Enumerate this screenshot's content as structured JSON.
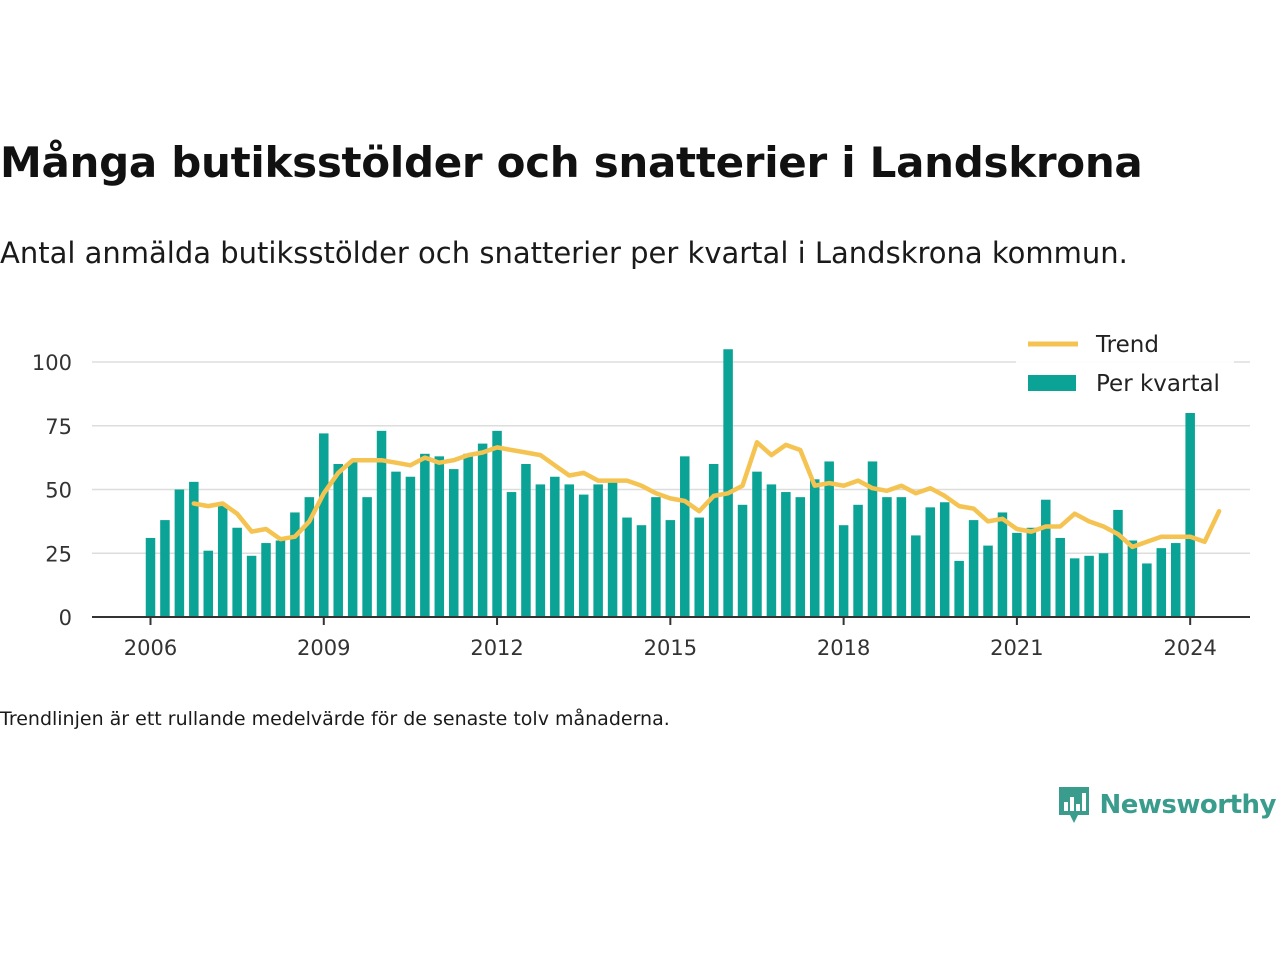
{
  "header": {
    "title": "Många butiksstölder och snatterier i Landskrona",
    "subtitle": "Antal anmälda butiksstölder och snatterier per kvartal i Landskrona kommun."
  },
  "footer": {
    "note": "Trendlinjen är ett rullande medelvärde för de senaste tolv månaderna.",
    "brand": "Newsworthy"
  },
  "colors": {
    "bars": "#0aa395",
    "trend": "#f5c351",
    "grid": "#dddddd",
    "axis": "#333333",
    "brand": "#3a9c8c"
  },
  "icons": {
    "brand_logo": "bar-chart-speech-bubble-icon"
  },
  "chart_data": {
    "type": "bar",
    "title": "Många butiksstölder och snatterier i Landskrona",
    "subtitle": "Antal anmälda butiksstölder och snatterier per kvartal i Landskrona kommun.",
    "legend_position": "top-right",
    "grid": true,
    "x_ticks": [
      "2006",
      "2009",
      "2012",
      "2015",
      "2018",
      "2021",
      "2024"
    ],
    "y_ticks": [
      0,
      25,
      50,
      75,
      100
    ],
    "ylim": [
      0,
      108
    ],
    "x_start": "2006 Q1",
    "legend": [
      {
        "key": "trend",
        "label": "Trend"
      },
      {
        "key": "bars",
        "label": "Per kvartal"
      }
    ],
    "series": [
      {
        "name": "Per kvartal",
        "type": "bar",
        "values": [
          31,
          38,
          50,
          53,
          26,
          44,
          35,
          24,
          29,
          30,
          41,
          47,
          72,
          60,
          61,
          47,
          73,
          57,
          55,
          64,
          63,
          58,
          64,
          68,
          73,
          49,
          60,
          52,
          55,
          52,
          48,
          52,
          54,
          39,
          36,
          47,
          38,
          63,
          39,
          60,
          105,
          44,
          57,
          52,
          49,
          47,
          54,
          61,
          36,
          44,
          61,
          47,
          47,
          32,
          43,
          45,
          22,
          38,
          28,
          41,
          33,
          35,
          46,
          31,
          23,
          24,
          25,
          42,
          30,
          21,
          27,
          29,
          80
        ]
      },
      {
        "name": "Trend",
        "type": "line",
        "start_index": 3,
        "values": [
          44.5,
          43.5,
          44.5,
          40.5,
          33.5,
          34.5,
          30.5,
          31.5,
          37.5,
          48.5,
          56.5,
          61.5,
          61.5,
          61.5,
          60.5,
          59.5,
          62.5,
          60.5,
          61.5,
          63.5,
          64.5,
          66.5,
          65.5,
          64.5,
          63.5,
          59.5,
          55.5,
          56.5,
          53.5,
          53.5,
          53.5,
          51.5,
          48.5,
          46.5,
          45.5,
          41.5,
          47.5,
          48.5,
          51.5,
          68.5,
          63.5,
          67.5,
          65.5,
          51.5,
          52.5,
          51.5,
          53.5,
          50.5,
          49.5,
          51.5,
          48.5,
          50.5,
          47.5,
          43.5,
          42.5,
          37.5,
          38.5,
          34.5,
          33.5,
          35.5,
          35.5,
          40.5,
          37.5,
          35.5,
          32.5,
          27.5,
          29.5,
          31.5,
          31.5,
          31.5,
          29.5,
          41.5
        ]
      }
    ]
  }
}
